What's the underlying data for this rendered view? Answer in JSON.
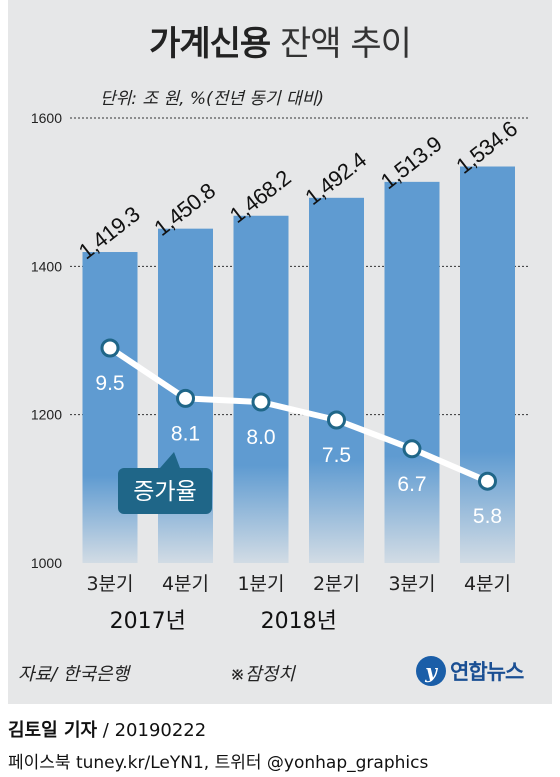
{
  "header": {
    "title_bold": "가계신용",
    "title_light": "잔액 추이",
    "unit": "단위: 조 원, %(전년 동기 대비)"
  },
  "footer": {
    "source": "자료/ 한국은행",
    "note": "※잠정치",
    "logo_text": "연합뉴스",
    "logo_mark": "y",
    "reporter": "김토일 기자",
    "date": " / 20190222",
    "social": "페이스북 tuney.kr/LeYN1, 트위터 @yonhap_graphics"
  },
  "colors": {
    "bar": "#5f9bd1",
    "line": "#ffffff",
    "callout": "#1f6688",
    "panel": "#e6e7e8"
  },
  "chart_data": {
    "type": "bar",
    "categories": [
      "3분기",
      "4분기",
      "1분기",
      "2분기",
      "3분기",
      "4분기"
    ],
    "year_labels": [
      {
        "label": "2017년",
        "index": 0.5
      },
      {
        "label": "2018년",
        "index": 2.5
      }
    ],
    "values": [
      1419.3,
      1450.8,
      1468.2,
      1492.4,
      1513.9,
      1534.6
    ],
    "value_labels": [
      "1,419.3",
      "1,450.8",
      "1,468.2",
      "1,492.4",
      "1,513.9",
      "1,534.6"
    ],
    "ylim": [
      1000,
      1600
    ],
    "yticks": [
      1000,
      1200,
      1400,
      1600
    ],
    "grid": true,
    "overlay_line": {
      "name": "증가율",
      "values": [
        9.5,
        8.1,
        8.0,
        7.5,
        6.7,
        5.8
      ],
      "labels": [
        "9.5",
        "8.1",
        "8.0",
        "7.5",
        "6.7",
        "5.8"
      ]
    }
  }
}
